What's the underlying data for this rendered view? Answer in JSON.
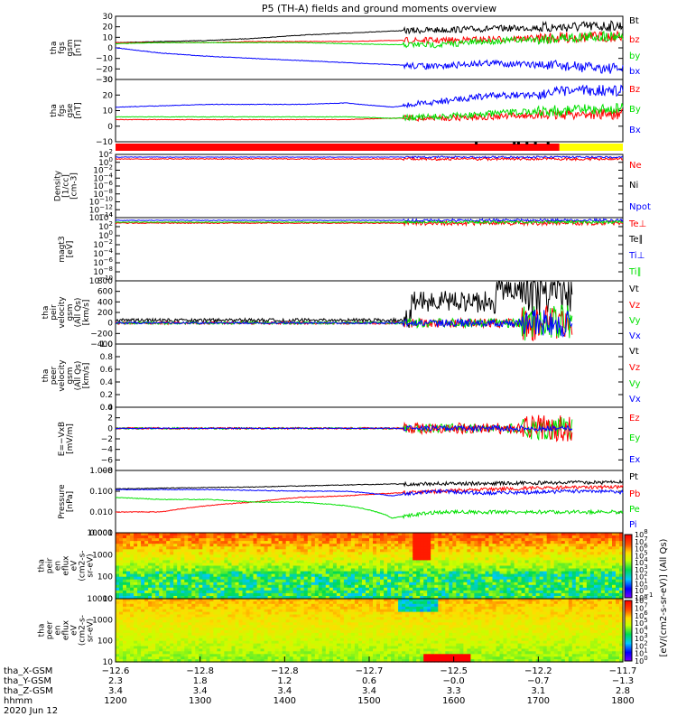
{
  "title": "P5 (TH-A) fields and ground moments overview",
  "colors": {
    "black": "#000000",
    "red": "#ff0000",
    "green": "#00e000",
    "blue": "#0000ff",
    "yellow": "#ffff00"
  },
  "chart_data": [
    {
      "type": "line",
      "name": "tha_fgs_gsm",
      "ylabel": [
        "tha",
        "fgs",
        "gsm",
        "[nT]"
      ],
      "yticks": [
        "30",
        "20",
        "10",
        "0",
        "−10",
        "−20",
        "−30"
      ],
      "ylim": [
        -30,
        30
      ],
      "series": [
        {
          "name": "Bt",
          "color": "#000000",
          "values": [
            5,
            6,
            7,
            9,
            12,
            14,
            16,
            17,
            18,
            19,
            20,
            21
          ]
        },
        {
          "name": "bz",
          "color": "#ff0000",
          "values": [
            5,
            5,
            5,
            6,
            6,
            6,
            7,
            7,
            8,
            9,
            10,
            11
          ]
        },
        {
          "name": "by",
          "color": "#00e000",
          "values": [
            4,
            5,
            5,
            5,
            5,
            4,
            3,
            3,
            6,
            8,
            10,
            12
          ]
        },
        {
          "name": "bx",
          "color": "#0000ff",
          "values": [
            0,
            -5,
            -8,
            -10,
            -12,
            -14,
            -16,
            -18,
            -14,
            -16,
            -18,
            -20
          ]
        }
      ]
    },
    {
      "type": "line",
      "name": "tha_fgs_gse",
      "ylabel": [
        "tha",
        "fgs",
        "gse",
        "[nT]"
      ],
      "yticks": [
        "30",
        "20",
        "10",
        "0",
        "−10"
      ],
      "ylim": [
        -15,
        30
      ],
      "series": [
        {
          "name": "Bz",
          "color": "#ff0000",
          "values": [
            1,
            1,
            1,
            1,
            1,
            1,
            2,
            2,
            3,
            4,
            5,
            5
          ]
        },
        {
          "name": "By",
          "color": "#00e000",
          "values": [
            3,
            3,
            3,
            3,
            3,
            3,
            2,
            3,
            5,
            7,
            8,
            9
          ]
        },
        {
          "name": "Bx",
          "color": "#0000ff",
          "values": [
            10,
            11,
            12,
            12,
            12,
            13,
            10,
            14,
            18,
            19,
            22,
            22
          ]
        }
      ]
    },
    {
      "type": "line",
      "name": "tha_density",
      "ylabel": [
        "Density",
        "[1/cc]",
        "[cm-3]"
      ],
      "yticks": [
        "10^2",
        "10^0",
        "10^-2",
        "10^-4",
        "10^-6",
        "10^-8",
        "10^-10",
        "10^-12",
        "10^-14"
      ],
      "series": [
        {
          "name": "Ne",
          "color": "#ff0000"
        },
        {
          "name": "Ni",
          "color": "#000000"
        },
        {
          "name": "Npot",
          "color": "#0000ff"
        }
      ]
    },
    {
      "type": "line",
      "name": "tha_temperature",
      "ylabel": [
        "magt3",
        "[eV]"
      ],
      "yticks": [
        "10^4",
        "10^2",
        "10^0",
        "10^-2",
        "10^-4",
        "10^-6",
        "10^-8",
        "10^-10"
      ],
      "series": [
        {
          "name": "Te⊥",
          "color": "#ff0000"
        },
        {
          "name": "Te∥",
          "color": "#000000"
        },
        {
          "name": "Ti⊥",
          "color": "#0000ff"
        },
        {
          "name": "Ti∥",
          "color": "#00e000"
        }
      ]
    },
    {
      "type": "line",
      "name": "tha_peir_velocity",
      "ylabel": [
        "tha",
        "peir",
        "velocity",
        "gsm",
        "(All Qs)",
        "[km/s]"
      ],
      "yticks": [
        "800",
        "600",
        "400",
        "200",
        "0",
        "−200",
        "−400"
      ],
      "ylim": [
        -400,
        800
      ],
      "series": [
        {
          "name": "Vt",
          "color": "#000000"
        },
        {
          "name": "Vz",
          "color": "#ff0000"
        },
        {
          "name": "Vy",
          "color": "#00e000"
        },
        {
          "name": "Vx",
          "color": "#0000ff"
        }
      ]
    },
    {
      "type": "line",
      "name": "tha_peer_velocity",
      "ylabel": [
        "tha",
        "peer",
        "velocity",
        "gsm",
        "(All Qs)",
        "[km/s]"
      ],
      "yticks": [
        "1.0",
        "0.8",
        "0.6",
        "0.4",
        "0.2",
        "0.0"
      ],
      "ylim": [
        0,
        1
      ],
      "series": [
        {
          "name": "Vt",
          "color": "#000000"
        },
        {
          "name": "Vz",
          "color": "#ff0000"
        },
        {
          "name": "Vy",
          "color": "#00e000"
        },
        {
          "name": "Vx",
          "color": "#0000ff"
        }
      ]
    },
    {
      "type": "line",
      "name": "tha_efield",
      "ylabel": [
        "E=−VxB",
        "[mV/m]"
      ],
      "yticks": [
        "4",
        "2",
        "0",
        "−2",
        "−4",
        "−6",
        "−8"
      ],
      "ylim": [
        -8,
        4
      ],
      "series": [
        {
          "name": "Ez",
          "color": "#ff0000"
        },
        {
          "name": "Ey",
          "color": "#00e000"
        },
        {
          "name": "Ex",
          "color": "#0000ff"
        }
      ]
    },
    {
      "type": "line",
      "name": "tha_pressure",
      "ylabel": [
        "Pressure",
        "[nPa]"
      ],
      "yticks": [
        "1.000",
        "0.100",
        "0.010",
        "0.001"
      ],
      "series": [
        {
          "name": "Pt",
          "color": "#000000",
          "values": [
            0.13,
            0.14,
            0.15,
            0.16,
            0.18,
            0.2,
            0.22,
            0.23,
            0.24,
            0.25,
            0.26,
            0.27
          ]
        },
        {
          "name": "Pb",
          "color": "#ff0000",
          "values": [
            0.01,
            0.01,
            0.02,
            0.03,
            0.05,
            0.06,
            0.08,
            0.1,
            0.12,
            0.14,
            0.15,
            0.16
          ]
        },
        {
          "name": "Pe",
          "color": "#00e000",
          "values": [
            0.05,
            0.04,
            0.04,
            0.03,
            0.03,
            0.02,
            0.005,
            0.01,
            0.01,
            0.01,
            0.01,
            0.01
          ]
        },
        {
          "name": "Pi",
          "color": "#0000ff",
          "values": [
            0.12,
            0.12,
            0.12,
            0.11,
            0.1,
            0.1,
            0.06,
            0.1,
            0.08,
            0.09,
            0.1,
            0.09
          ]
        }
      ]
    },
    {
      "type": "heatmap",
      "name": "tha_peir_en_eflux",
      "ylabel": [
        "tha",
        "peir",
        "en",
        "eflux",
        "eV",
        "(cm2-s-",
        "sr-eV)"
      ],
      "yticks": [
        "10000",
        "1000",
        "100",
        "10"
      ]
    },
    {
      "type": "heatmap",
      "name": "tha_peer_en_eflux",
      "ylabel": [
        "tha",
        "peer",
        "en",
        "eflux",
        "eV",
        "(cm2-s-",
        "sr-eV)"
      ],
      "yticks": [
        "10000",
        "1000",
        "100",
        "10"
      ]
    }
  ],
  "colorbar1": {
    "ticks": [
      "10^8",
      "10^7",
      "10^6",
      "10^5",
      "10^4",
      "10^3",
      "10^2",
      "10^1",
      "10^0",
      "10^-1"
    ]
  },
  "colorbar2": {
    "ticks": [
      "10^8",
      "10^7",
      "10^6",
      "10^5",
      "10^4",
      "10^3",
      "10^2",
      "10^1",
      "10^0"
    ]
  },
  "colorbar_label": "[eV/(cm2-s-sr-eV)] (All Qs)",
  "xaxis": {
    "rows": [
      {
        "label": "tha_X-GSM",
        "values": [
          "−12.6",
          "−12.8",
          "−12.8",
          "−12.7",
          "−12.5",
          "−12.2",
          "−11.7"
        ]
      },
      {
        "label": "tha_Y-GSM",
        "values": [
          "2.3",
          "1.8",
          "1.2",
          "0.6",
          "−0.0",
          "−0.7",
          "−1.3"
        ]
      },
      {
        "label": "tha_Z-GSM",
        "values": [
          "3.4",
          "3.4",
          "3.4",
          "3.4",
          "3.3",
          "3.1",
          "2.8"
        ]
      },
      {
        "label": "hhmm",
        "values": [
          "1200",
          "1300",
          "1400",
          "1500",
          "1600",
          "1700",
          "1800"
        ]
      }
    ],
    "date": "2020 Jun 12"
  }
}
